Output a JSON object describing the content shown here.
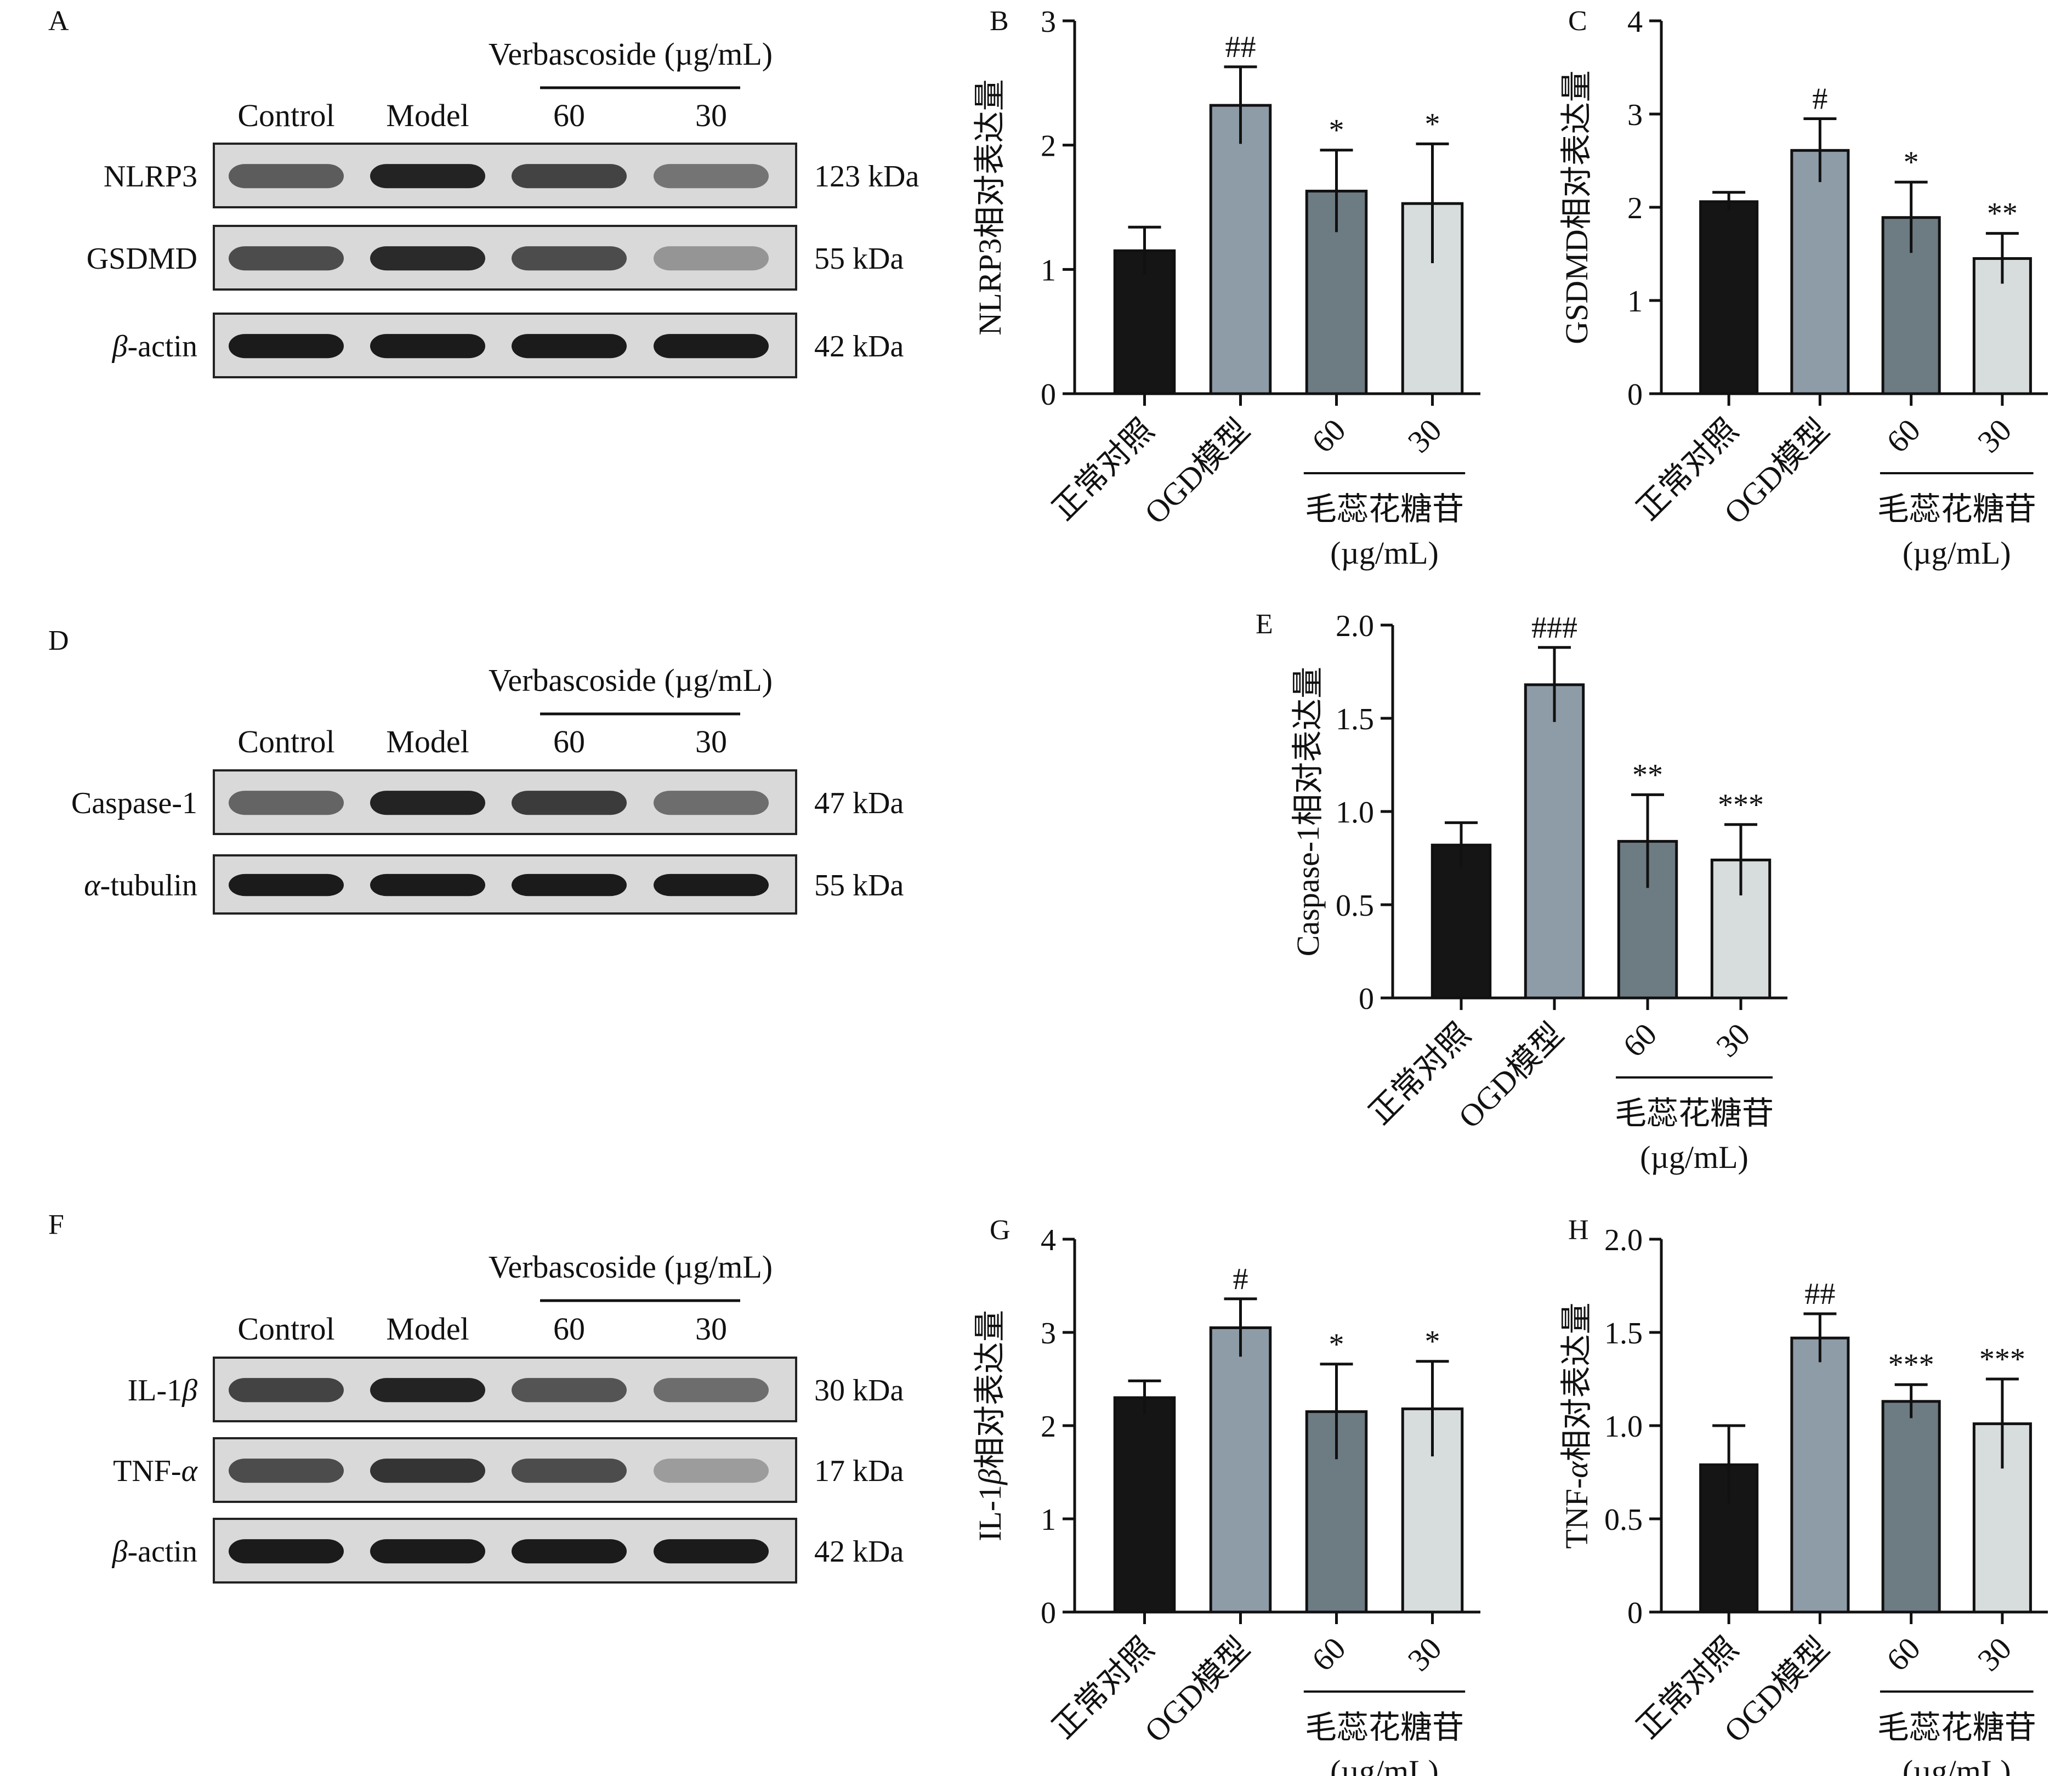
{
  "colors": {
    "bar_control": "#151515",
    "bar_model": "#8e9ca8",
    "bar_60": "#6d7b83",
    "bar_30": "#d7dcdd",
    "blot_band": "#1b1b1b",
    "blot_bg": "#d9d9d9"
  },
  "icons": {
    "western_blot": "western-blot-image"
  },
  "blots": [
    {
      "panel": "A",
      "treatment_label": "Verbascoside (µg/mL)",
      "lanes": [
        "Control",
        "Model",
        "60",
        "30"
      ],
      "rows": [
        {
          "protein": "NLRP3",
          "size": "123 kDa",
          "intensity": [
            0.6,
            0.95,
            0.75,
            0.45
          ]
        },
        {
          "protein": "GSDMD",
          "size": "55 kDa",
          "intensity": [
            0.7,
            0.9,
            0.7,
            0.25
          ]
        },
        {
          "protein": "β-actin",
          "size": "42 kDa",
          "intensity": [
            1.0,
            1.0,
            1.0,
            1.0
          ]
        }
      ]
    },
    {
      "panel": "D",
      "treatment_label": "Verbascoside (µg/mL)",
      "lanes": [
        "Control",
        "Model",
        "60",
        "30"
      ],
      "rows": [
        {
          "protein": "Caspase-1",
          "size": "47 kDa",
          "intensity": [
            0.55,
            0.95,
            0.8,
            0.5
          ]
        },
        {
          "protein": "α-tubulin",
          "size": "55 kDa",
          "intensity": [
            1.0,
            1.0,
            1.0,
            1.0
          ]
        }
      ]
    },
    {
      "panel": "F",
      "treatment_label": "Verbascoside (µg/mL)",
      "lanes": [
        "Control",
        "Model",
        "60",
        "30"
      ],
      "rows": [
        {
          "protein": "IL-1β",
          "size": "30 kDa",
          "intensity": [
            0.75,
            0.95,
            0.65,
            0.5
          ]
        },
        {
          "protein": "TNF-α",
          "size": "17 kDa",
          "intensity": [
            0.7,
            0.85,
            0.7,
            0.2
          ]
        },
        {
          "protein": "β-actin",
          "size": "42 kDa",
          "intensity": [
            1.0,
            1.0,
            1.0,
            1.0
          ]
        }
      ]
    }
  ],
  "chart_data": [
    {
      "panel": "B",
      "type": "bar",
      "categories": [
        "正常对照",
        "OGD模型",
        "60",
        "30"
      ],
      "group_label": "毛蕊花糖苷",
      "group_unit": "(µg/mL)",
      "ylabel": "NLRP3相对表达量",
      "ylim": [
        0,
        3
      ],
      "yticks": [
        "0",
        "1",
        "2",
        "3"
      ],
      "values": [
        1.15,
        2.32,
        1.63,
        1.53
      ],
      "errors": [
        0.19,
        0.31,
        0.33,
        0.48
      ],
      "annotations": [
        "",
        "##",
        "*",
        "*"
      ]
    },
    {
      "panel": "C",
      "type": "bar",
      "categories": [
        "正常对照",
        "OGD模型",
        "60",
        "30"
      ],
      "group_label": "毛蕊花糖苷",
      "group_unit": "(µg/mL)",
      "ylabel": "GSDMD相对表达量",
      "ylim": [
        0,
        4
      ],
      "yticks": [
        "0",
        "1",
        "2",
        "3",
        "4"
      ],
      "values": [
        2.06,
        2.61,
        1.89,
        1.45
      ],
      "errors": [
        0.1,
        0.34,
        0.38,
        0.27
      ],
      "annotations": [
        "",
        "#",
        "*",
        "**"
      ]
    },
    {
      "panel": "E",
      "type": "bar",
      "categories": [
        "正常对照",
        "OGD模型",
        "60",
        "30"
      ],
      "group_label": "毛蕊花糖苷",
      "group_unit": "(µg/mL)",
      "ylabel": "Caspase-1相对表达量",
      "ylim": [
        0,
        2
      ],
      "yticks": [
        "0",
        "0.5",
        "1.0",
        "1.5",
        "2.0"
      ],
      "values": [
        0.82,
        1.68,
        0.84,
        0.74
      ],
      "errors": [
        0.12,
        0.2,
        0.25,
        0.19
      ],
      "annotations": [
        "",
        "###",
        "**",
        "***"
      ]
    },
    {
      "panel": "G",
      "type": "bar",
      "categories": [
        "正常对照",
        "OGD模型",
        "60",
        "30"
      ],
      "group_label": "毛蕊花糖苷",
      "group_unit": "(µg/mL)",
      "ylabel": "IL-1β相对表达量",
      "ylim": [
        0,
        4
      ],
      "yticks": [
        "0",
        "1",
        "2",
        "3",
        "4"
      ],
      "values": [
        2.3,
        3.05,
        2.15,
        2.18
      ],
      "errors": [
        0.18,
        0.31,
        0.51,
        0.51
      ],
      "annotations": [
        "",
        "#",
        "*",
        "*"
      ]
    },
    {
      "panel": "H",
      "type": "bar",
      "categories": [
        "正常对照",
        "OGD模型",
        "60",
        "30"
      ],
      "group_label": "毛蕊花糖苷",
      "group_unit": "(µg/mL)",
      "ylabel": "TNF-α相对表达量",
      "ylim": [
        0,
        2
      ],
      "yticks": [
        "0",
        "0.5",
        "1.0",
        "1.5",
        "2.0"
      ],
      "values": [
        0.79,
        1.47,
        1.13,
        1.01
      ],
      "errors": [
        0.21,
        0.13,
        0.09,
        0.24
      ],
      "annotations": [
        "",
        "##",
        "***",
        "***"
      ]
    }
  ]
}
